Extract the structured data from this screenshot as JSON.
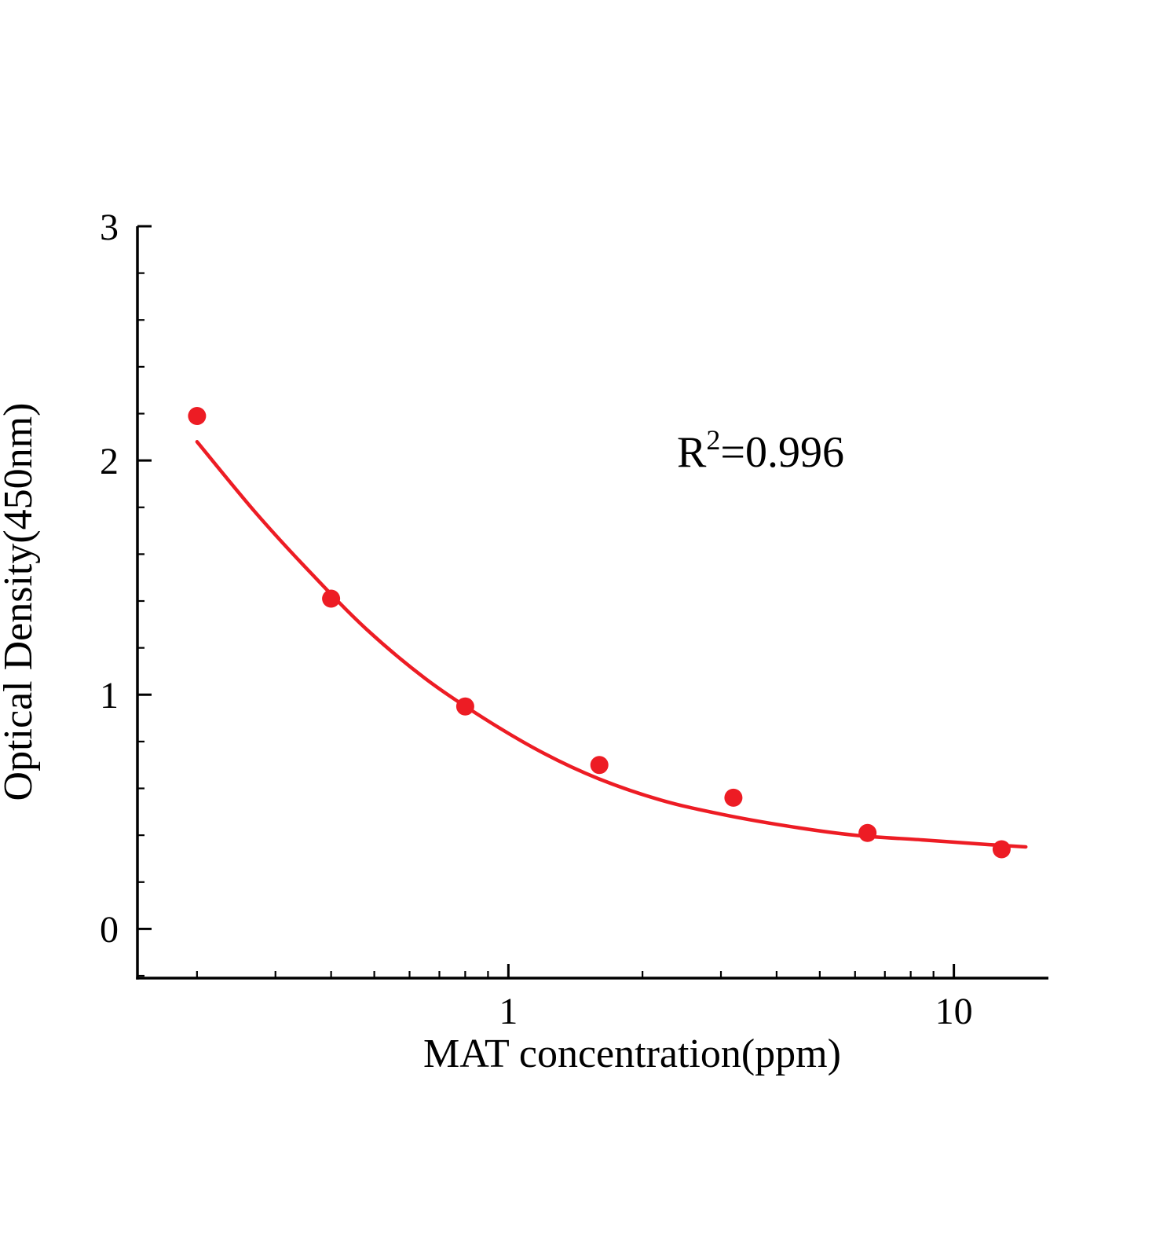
{
  "figure": {
    "background": "#ffffff",
    "axis_color": "#000000"
  },
  "chart_data": {
    "type": "scatter",
    "title": "",
    "xlabel": "MAT concentration(ppm)",
    "ylabel": "Optical Density(450nm)",
    "x_scale": "log",
    "y_scale": "linear",
    "xlim": [
      0.147,
      16.3
    ],
    "ylim": [
      -0.21,
      3
    ],
    "grid": false,
    "legend": null,
    "axis_color": "#000000",
    "x_major_ticks": [
      1,
      10
    ],
    "x_major_tick_labels": [
      "1",
      "10"
    ],
    "x_minor_ticks": [
      0.2,
      0.3,
      0.4,
      0.5,
      0.6,
      0.7,
      0.8,
      0.9,
      2,
      3,
      4,
      5,
      6,
      7,
      8,
      9
    ],
    "y_major_ticks": [
      0,
      1,
      2,
      3
    ],
    "y_major_tick_labels": [
      "0",
      "1",
      "2",
      "3"
    ],
    "y_minor_tick_step": 0.2,
    "annotation": {
      "base": "R",
      "sup": "2",
      "rest": "=0.996",
      "text": "R²=0.996"
    },
    "series": [
      {
        "name": "standard-points",
        "kind": "scatter",
        "marker": "circle",
        "marker_radius": 11.5,
        "color": "#ED1C24",
        "points": [
          [
            0.2,
            2.19
          ],
          [
            0.4,
            1.41
          ],
          [
            0.8,
            0.95
          ],
          [
            1.6,
            0.7
          ],
          [
            3.2,
            0.56
          ],
          [
            6.4,
            0.41
          ],
          [
            12.8,
            0.34
          ]
        ]
      },
      {
        "name": "fit-curve",
        "kind": "line",
        "color": "#ED1C24",
        "line_width": 4.5,
        "points": [
          [
            0.2,
            2.08
          ],
          [
            0.27,
            1.78
          ],
          [
            0.36,
            1.52
          ],
          [
            0.48,
            1.28
          ],
          [
            0.65,
            1.07
          ],
          [
            0.88,
            0.9
          ],
          [
            1.2,
            0.75
          ],
          [
            1.6,
            0.64
          ],
          [
            2.2,
            0.55
          ],
          [
            3.0,
            0.49
          ],
          [
            4.2,
            0.44
          ],
          [
            6.0,
            0.4
          ],
          [
            8.5,
            0.38
          ],
          [
            12.0,
            0.36
          ],
          [
            14.5,
            0.35
          ]
        ]
      }
    ]
  }
}
